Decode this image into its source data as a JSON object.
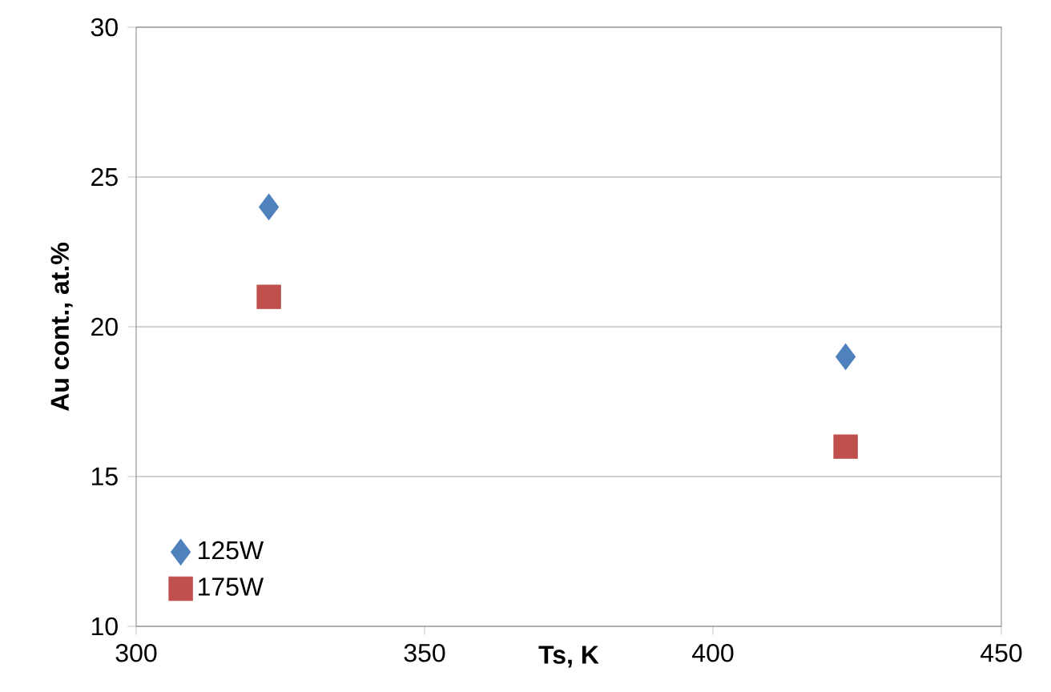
{
  "chart_data": {
    "type": "scatter",
    "xlabel": "Ts, K",
    "ylabel": "Au cont., at.%",
    "xlim": [
      300,
      450
    ],
    "xticks": [
      300,
      350,
      400,
      450
    ],
    "ylim": [
      10,
      30
    ],
    "yticks": [
      10,
      15,
      20,
      25,
      30
    ],
    "grid": "y",
    "legend": "bottom left",
    "x": [
      323,
      423
    ],
    "series": [
      {
        "name": "125W",
        "color": "#4f81bd",
        "marker": "diamond",
        "values": [
          24,
          19
        ]
      },
      {
        "name": "175W",
        "color": "#c0504d",
        "marker": "square",
        "values": [
          21,
          16
        ]
      }
    ]
  }
}
